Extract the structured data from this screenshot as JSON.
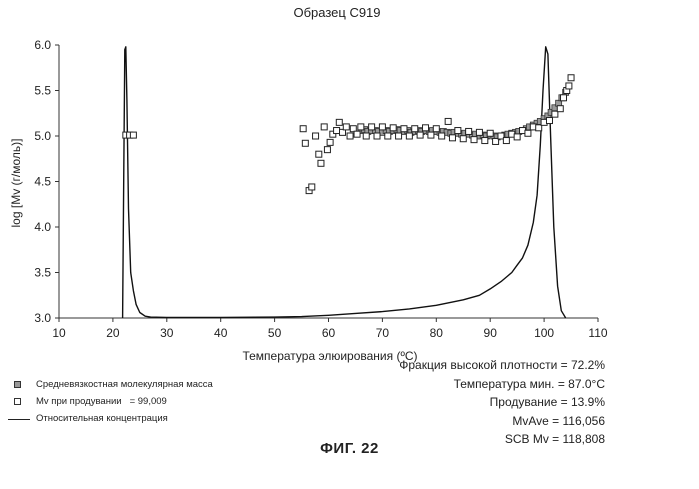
{
  "chart_data": {
    "type": "line",
    "title": "Образец C919",
    "xlabel": "Температура элюирования (ºC)",
    "ylabel": "log [Mv (г/моль)]",
    "xlim": [
      10,
      110
    ],
    "ylim": [
      3.0,
      6.0
    ],
    "xticks": [
      "10",
      "20",
      "30",
      "40",
      "50",
      "60",
      "70",
      "80",
      "90",
      "100",
      "110"
    ],
    "yticks": [
      "3.0",
      "3.5",
      "4.0",
      "4.5",
      "5.0",
      "5.5",
      "6.0"
    ],
    "series": [
      {
        "name": "Средневязкостная молекулярная масса",
        "style": "filled-square",
        "points": [
          [
            66,
            5.06
          ],
          [
            66.7,
            5.07
          ],
          [
            67.3,
            5.05
          ],
          [
            68,
            5.06
          ],
          [
            68.7,
            5.06
          ],
          [
            69.3,
            5.05
          ],
          [
            70,
            5.04
          ],
          [
            70.7,
            5.06
          ],
          [
            71.3,
            5.05
          ],
          [
            72,
            5.06
          ],
          [
            72.7,
            5.07
          ],
          [
            73.3,
            5.06
          ],
          [
            74,
            5.05
          ],
          [
            74.7,
            5.06
          ],
          [
            75.3,
            5.04
          ],
          [
            76,
            5.05
          ],
          [
            76.7,
            5.06
          ],
          [
            77.3,
            5.05
          ],
          [
            78,
            5.06
          ],
          [
            78.7,
            5.05
          ],
          [
            79.3,
            5.06
          ],
          [
            80,
            5.05
          ],
          [
            80.7,
            5.04
          ],
          [
            81.3,
            5.05
          ],
          [
            82,
            5.04
          ],
          [
            82.7,
            5.03
          ],
          [
            83.3,
            5.04
          ],
          [
            84,
            5.03
          ],
          [
            84.7,
            5.02
          ],
          [
            85.3,
            5.03
          ],
          [
            86,
            5.02
          ],
          [
            86.7,
            5.01
          ],
          [
            87.3,
            5.02
          ],
          [
            88,
            5.0
          ],
          [
            88.7,
            5.01
          ],
          [
            89.3,
            5.0
          ],
          [
            90,
            5.01
          ],
          [
            90.7,
            5.0
          ],
          [
            91.3,
            4.99
          ],
          [
            92,
            5.0
          ],
          [
            92.7,
            5.01
          ],
          [
            93.3,
            5.02
          ],
          [
            94,
            5.03
          ],
          [
            94.7,
            5.04
          ],
          [
            95.3,
            5.05
          ],
          [
            96,
            5.06
          ],
          [
            96.7,
            5.08
          ],
          [
            97.3,
            5.1
          ],
          [
            98,
            5.12
          ],
          [
            98.7,
            5.14
          ],
          [
            99.3,
            5.16
          ],
          [
            100,
            5.19
          ],
          [
            100.7,
            5.22
          ],
          [
            101.3,
            5.26
          ],
          [
            102,
            5.31
          ],
          [
            102.7,
            5.36
          ],
          [
            103.3,
            5.42
          ],
          [
            104,
            5.48
          ]
        ]
      },
      {
        "name": "Mv при продувании",
        "name_value": "99,009",
        "style": "open-square",
        "points": [
          [
            22.4,
            5.01
          ],
          [
            23.1,
            5.01
          ],
          [
            23.8,
            5.01
          ],
          [
            55.3,
            5.08
          ],
          [
            55.7,
            4.92
          ],
          [
            56.4,
            4.4
          ],
          [
            56.9,
            4.44
          ],
          [
            57.6,
            5.0
          ],
          [
            58.2,
            4.8
          ],
          [
            58.6,
            4.7
          ],
          [
            59.2,
            5.1
          ],
          [
            59.8,
            4.85
          ],
          [
            60.3,
            4.93
          ],
          [
            60.8,
            5.02
          ],
          [
            61.5,
            5.06
          ],
          [
            62.0,
            5.15
          ],
          [
            62.6,
            5.04
          ],
          [
            63.3,
            5.1
          ],
          [
            64.0,
            5.0
          ],
          [
            64.6,
            5.08
          ],
          [
            65.3,
            5.02
          ],
          [
            66.0,
            5.1
          ],
          [
            67.0,
            5.0
          ],
          [
            68.0,
            5.1
          ],
          [
            69.0,
            5.0
          ],
          [
            70.0,
            5.1
          ],
          [
            71.0,
            5.0
          ],
          [
            72.0,
            5.09
          ],
          [
            73.0,
            5.0
          ],
          [
            74.0,
            5.08
          ],
          [
            75.0,
            5.0
          ],
          [
            76.0,
            5.08
          ],
          [
            77.0,
            5.01
          ],
          [
            78.0,
            5.09
          ],
          [
            79.0,
            5.01
          ],
          [
            80.0,
            5.08
          ],
          [
            81.0,
            5.0
          ],
          [
            82.2,
            5.16
          ],
          [
            83.0,
            4.98
          ],
          [
            84.0,
            5.06
          ],
          [
            85.0,
            4.97
          ],
          [
            86.0,
            5.05
          ],
          [
            87.0,
            4.96
          ],
          [
            88.0,
            5.04
          ],
          [
            89.0,
            4.95
          ],
          [
            90.0,
            5.03
          ],
          [
            91.0,
            4.94
          ],
          [
            92.0,
            5.0
          ],
          [
            93.0,
            4.95
          ],
          [
            94.0,
            5.02
          ],
          [
            95.0,
            4.99
          ],
          [
            96.0,
            5.06
          ],
          [
            97.0,
            5.03
          ],
          [
            98.0,
            5.1
          ],
          [
            99.0,
            5.09
          ],
          [
            100.0,
            5.15
          ],
          [
            101.0,
            5.17
          ],
          [
            102.0,
            5.24
          ],
          [
            103.0,
            5.3
          ],
          [
            103.6,
            5.42
          ],
          [
            104.2,
            5.5
          ],
          [
            104.6,
            5.55
          ],
          [
            105.0,
            5.64
          ]
        ]
      },
      {
        "name": "Относительная концентрация",
        "style": "line",
        "points": [
          [
            21.8,
            3.0
          ],
          [
            22.0,
            4.5
          ],
          [
            22.2,
            5.95
          ],
          [
            22.4,
            5.98
          ],
          [
            22.6,
            5.4
          ],
          [
            22.9,
            4.2
          ],
          [
            23.3,
            3.5
          ],
          [
            23.8,
            3.3
          ],
          [
            24.3,
            3.15
          ],
          [
            25.0,
            3.06
          ],
          [
            26.0,
            3.02
          ],
          [
            27.0,
            3.01
          ],
          [
            30.0,
            3.005
          ],
          [
            40.0,
            3.005
          ],
          [
            50.0,
            3.01
          ],
          [
            55.0,
            3.015
          ],
          [
            60.0,
            3.03
          ],
          [
            65.0,
            3.05
          ],
          [
            70.0,
            3.07
          ],
          [
            75.0,
            3.1
          ],
          [
            80.0,
            3.14
          ],
          [
            85.0,
            3.2
          ],
          [
            88.0,
            3.25
          ],
          [
            90.0,
            3.32
          ],
          [
            92.0,
            3.4
          ],
          [
            94.0,
            3.5
          ],
          [
            95.0,
            3.58
          ],
          [
            96.0,
            3.66
          ],
          [
            97.0,
            3.8
          ],
          [
            98.0,
            4.05
          ],
          [
            98.7,
            4.35
          ],
          [
            99.3,
            4.9
          ],
          [
            99.8,
            5.5
          ],
          [
            100.3,
            5.98
          ],
          [
            100.7,
            5.9
          ],
          [
            101.2,
            5.0
          ],
          [
            101.8,
            4.0
          ],
          [
            102.5,
            3.35
          ],
          [
            103.2,
            3.08
          ],
          [
            104.0,
            3.0
          ]
        ]
      }
    ],
    "stats": [
      "Фракция высокой плотности = 72.2%",
      "Температура мин. = 87.0°C",
      "Продувание = 13.9%",
      "MvAve = 116,056",
      "SCB Mv = 118,808"
    ],
    "figure_label": "ФИГ. 22"
  }
}
